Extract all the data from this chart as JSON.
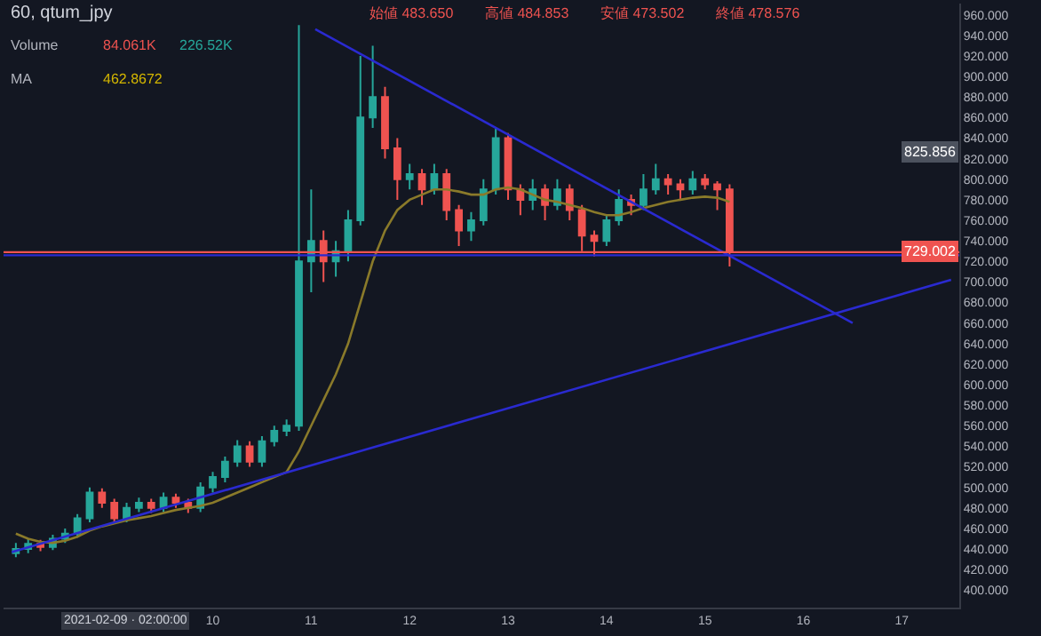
{
  "chart_data": {
    "type": "candlestick",
    "title": "60, qtum_jpy",
    "x": [
      "2021-02-08T00:00",
      "2021-02-08T03:00",
      "2021-02-08T06:00",
      "2021-02-08T09:00",
      "2021-02-08T12:00",
      "2021-02-08T15:00",
      "2021-02-08T18:00",
      "2021-02-08T21:00",
      "2021-02-09T00:00",
      "2021-02-09T03:00",
      "2021-02-09T06:00",
      "2021-02-09T09:00",
      "2021-02-09T12:00",
      "2021-02-09T15:00",
      "2021-02-09T18:00",
      "2021-02-09T21:00",
      "2021-02-10T00:00",
      "2021-02-10T03:00",
      "2021-02-10T06:00",
      "2021-02-10T09:00",
      "2021-02-10T12:00",
      "2021-02-10T15:00",
      "2021-02-10T18:00",
      "2021-02-10T21:00",
      "2021-02-11T00:00",
      "2021-02-11T03:00",
      "2021-02-11T06:00",
      "2021-02-11T09:00",
      "2021-02-11T12:00",
      "2021-02-11T15:00",
      "2021-02-11T18:00",
      "2021-02-11T21:00",
      "2021-02-12T00:00",
      "2021-02-12T03:00",
      "2021-02-12T06:00",
      "2021-02-12T09:00",
      "2021-02-12T12:00",
      "2021-02-12T15:00",
      "2021-02-12T18:00",
      "2021-02-12T21:00",
      "2021-02-13T00:00",
      "2021-02-13T03:00",
      "2021-02-13T06:00",
      "2021-02-13T09:00",
      "2021-02-13T12:00",
      "2021-02-13T15:00",
      "2021-02-13T18:00",
      "2021-02-13T21:00",
      "2021-02-14T00:00",
      "2021-02-14T03:00",
      "2021-02-14T06:00",
      "2021-02-14T09:00",
      "2021-02-14T12:00",
      "2021-02-14T15:00",
      "2021-02-14T18:00",
      "2021-02-14T21:00",
      "2021-02-15T00:00",
      "2021-02-15T03:00",
      "2021-02-15T06:00"
    ],
    "ohlc": [
      [
        436,
        446,
        432,
        440
      ],
      [
        440,
        450,
        436,
        445
      ],
      [
        445,
        449,
        438,
        442
      ],
      [
        442,
        454,
        439,
        450
      ],
      [
        450,
        460,
        446,
        455
      ],
      [
        455,
        474,
        451,
        470
      ],
      [
        470,
        500,
        466,
        495
      ],
      [
        495,
        499,
        480,
        485
      ],
      [
        485,
        489,
        465,
        470
      ],
      [
        470,
        485,
        466,
        480
      ],
      [
        480,
        490,
        476,
        485
      ],
      [
        485,
        489,
        475,
        480
      ],
      [
        480,
        495,
        476,
        490
      ],
      [
        490,
        494,
        480,
        485
      ],
      [
        485,
        489,
        475,
        480
      ],
      [
        480,
        505,
        476,
        500
      ],
      [
        500,
        515,
        495,
        510
      ],
      [
        510,
        530,
        505,
        525
      ],
      [
        525,
        546,
        520,
        540
      ],
      [
        540,
        545,
        520,
        525
      ],
      [
        525,
        550,
        520,
        545
      ],
      [
        545,
        560,
        540,
        555
      ],
      [
        555,
        566,
        550,
        560
      ],
      [
        560,
        950,
        555,
        720
      ],
      [
        720,
        790,
        690,
        740
      ],
      [
        740,
        750,
        700,
        720
      ],
      [
        720,
        740,
        705,
        730
      ],
      [
        730,
        770,
        720,
        760
      ],
      [
        760,
        920,
        755,
        860
      ],
      [
        860,
        930,
        850,
        880
      ],
      [
        880,
        890,
        820,
        830
      ],
      [
        830,
        840,
        780,
        800
      ],
      [
        800,
        815,
        790,
        805
      ],
      [
        805,
        810,
        775,
        790
      ],
      [
        790,
        815,
        785,
        805
      ],
      [
        805,
        810,
        760,
        770
      ],
      [
        770,
        775,
        735,
        750
      ],
      [
        750,
        768,
        740,
        760
      ],
      [
        760,
        800,
        755,
        790
      ],
      [
        790,
        850,
        785,
        840
      ],
      [
        840,
        845,
        780,
        790
      ],
      [
        790,
        795,
        765,
        780
      ],
      [
        780,
        800,
        770,
        790
      ],
      [
        790,
        795,
        760,
        775
      ],
      [
        775,
        800,
        770,
        790
      ],
      [
        790,
        795,
        760,
        770
      ],
      [
        770,
        775,
        730,
        745
      ],
      [
        745,
        750,
        725,
        740
      ],
      [
        740,
        765,
        735,
        760
      ],
      [
        760,
        790,
        755,
        780
      ],
      [
        780,
        785,
        765,
        775
      ],
      [
        775,
        805,
        770,
        790
      ],
      [
        790,
        815,
        785,
        800
      ],
      [
        800,
        805,
        785,
        795
      ],
      [
        795,
        800,
        780,
        790
      ],
      [
        790,
        808,
        785,
        800
      ],
      [
        800,
        805,
        790,
        795
      ],
      [
        795,
        798,
        770,
        790
      ],
      [
        790,
        795,
        715,
        729.002
      ]
    ],
    "colors": [
      "#26a69a",
      "#26a69a",
      "#ef5350",
      "#26a69a",
      "#26a69a",
      "#26a69a",
      "#26a69a",
      "#ef5350",
      "#ef5350",
      "#26a69a",
      "#26a69a",
      "#ef5350",
      "#26a69a",
      "#ef5350",
      "#ef5350",
      "#26a69a",
      "#26a69a",
      "#26a69a",
      "#26a69a",
      "#ef5350",
      "#26a69a",
      "#26a69a",
      "#26a69a",
      "#26a69a",
      "#26a69a",
      "#ef5350",
      "#26a69a",
      "#26a69a",
      "#26a69a",
      "#26a69a",
      "#ef5350",
      "#ef5350",
      "#26a69a",
      "#ef5350",
      "#26a69a",
      "#ef5350",
      "#ef5350",
      "#26a69a",
      "#26a69a",
      "#26a69a",
      "#ef5350",
      "#ef5350",
      "#26a69a",
      "#ef5350",
      "#26a69a",
      "#ef5350",
      "#ef5350",
      "#ef5350",
      "#26a69a",
      "#26a69a",
      "#ef5350",
      "#26a69a",
      "#26a69a",
      "#ef5350",
      "#ef5350",
      "#26a69a",
      "#ef5350",
      "#ef5350",
      "#ef5350"
    ],
    "series": [
      {
        "type": "line",
        "color": "#8a7a2a",
        "values": [
          455,
          450,
          447,
          446,
          448,
          452,
          458,
          462,
          465,
          468,
          470,
          472,
          475,
          478,
          480,
          482,
          485,
          490,
          495,
          500,
          505,
          510,
          515,
          535,
          560,
          585,
          610,
          640,
          680,
          720,
          750,
          770,
          780,
          785,
          790,
          790,
          788,
          785,
          785,
          790,
          792,
          790,
          785,
          780,
          778,
          775,
          772,
          768,
          765,
          765,
          768,
          772,
          775,
          778,
          780,
          782,
          783,
          782,
          778
        ]
      },
      {
        "type": "line",
        "color": "#2a2ad0",
        "x": [
          "2021-02-11T01:00",
          "2021-02-16T12:00"
        ],
        "values": [
          946,
          660
        ]
      },
      {
        "type": "line",
        "color": "#2a2ad0",
        "x": [
          "2021-02-07T23:00",
          "2021-02-17T12:00"
        ],
        "values": [
          437,
          702
        ]
      }
    ],
    "ref_lines": [
      {
        "axis": "y",
        "value": 726,
        "color": "#2a2ad0"
      },
      {
        "axis": "y",
        "value": 729.002,
        "label": "729.002",
        "color": "#ef5350"
      }
    ],
    "annotations": [
      "始値 483.650",
      "高値 484.853",
      "安値 473.502",
      "終値 478.576",
      "Volume",
      "84.061K",
      "226.52K",
      "MA",
      "462.8672",
      {
        "text": "825.856",
        "y": 825.856
      },
      "2021-02-09 · 02:00:00"
    ],
    "xlim": [
      "2021-02-07T21:00",
      "2021-02-17T14:00"
    ],
    "xticks": [
      {
        "value": "2021-02-10",
        "label": "10"
      },
      {
        "value": "2021-02-11",
        "label": "11"
      },
      {
        "value": "2021-02-12",
        "label": "12"
      },
      {
        "value": "2021-02-13",
        "label": "13"
      },
      {
        "value": "2021-02-14",
        "label": "14"
      },
      {
        "value": "2021-02-15",
        "label": "15"
      },
      {
        "value": "2021-02-16",
        "label": "16"
      },
      {
        "value": "2021-02-17",
        "label": "17"
      }
    ],
    "ylim": [
      383,
      971
    ],
    "yticks": [
      {
        "value": 400,
        "label": "400.000"
      },
      {
        "value": 420,
        "label": "420.000"
      },
      {
        "value": 440,
        "label": "440.000"
      },
      {
        "value": 460,
        "label": "460.000"
      },
      {
        "value": 480,
        "label": "480.000"
      },
      {
        "value": 500,
        "label": "500.000"
      },
      {
        "value": 520,
        "label": "520.000"
      },
      {
        "value": 540,
        "label": "540.000"
      },
      {
        "value": 560,
        "label": "560.000"
      },
      {
        "value": 580,
        "label": "580.000"
      },
      {
        "value": 600,
        "label": "600.000"
      },
      {
        "value": 620,
        "label": "620.000"
      },
      {
        "value": 640,
        "label": "640.000"
      },
      {
        "value": 660,
        "label": "660.000"
      },
      {
        "value": 680,
        "label": "680.000"
      },
      {
        "value": 700,
        "label": "700.000"
      },
      {
        "value": 720,
        "label": "720.000"
      },
      {
        "value": 740,
        "label": "740.000"
      },
      {
        "value": 760,
        "label": "760.000"
      },
      {
        "value": 780,
        "label": "780.000"
      },
      {
        "value": 800,
        "label": "800.000"
      },
      {
        "value": 820,
        "label": "820.000"
      },
      {
        "value": 840,
        "label": "840.000"
      },
      {
        "value": 860,
        "label": "860.000"
      },
      {
        "value": 880,
        "label": "880.000"
      },
      {
        "value": 900,
        "label": "900.000"
      },
      {
        "value": 920,
        "label": "920.000"
      },
      {
        "value": 940,
        "label": "940.000"
      },
      {
        "value": 960,
        "label": "960.000"
      }
    ],
    "grid": false
  }
}
